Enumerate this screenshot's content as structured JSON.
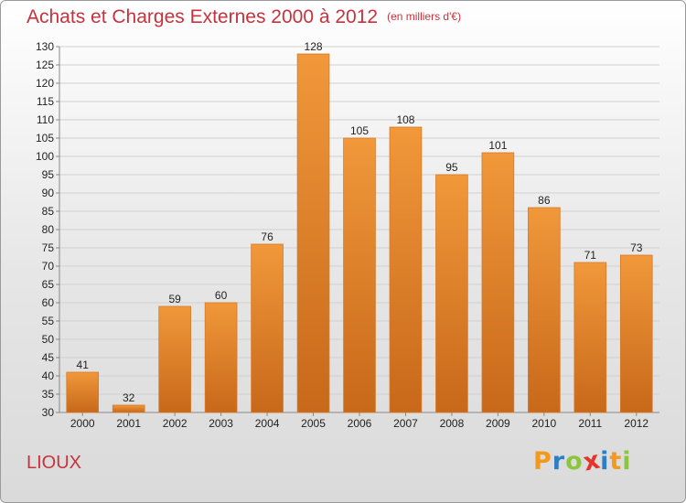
{
  "chart_data": {
    "type": "bar",
    "title": "Achats et Charges Externes 2000 à 2012",
    "subtitle": "(en milliers d'€)",
    "categories": [
      "2000",
      "2001",
      "2002",
      "2003",
      "2004",
      "2005",
      "2006",
      "2007",
      "2008",
      "2009",
      "2010",
      "2011",
      "2012"
    ],
    "values": [
      41,
      32,
      59,
      60,
      76,
      128,
      105,
      108,
      95,
      101,
      86,
      71,
      73
    ],
    "ylim": [
      30,
      130
    ],
    "ytick_step": 5,
    "grid": true,
    "bar_color": "#f0983a",
    "bar_color_dark": "#c8681a"
  },
  "commune": "LIOUX",
  "logo": {
    "text": "Proxiti",
    "letters": [
      "P",
      "r",
      "o",
      "x",
      "i",
      "t",
      "i"
    ],
    "colors": [
      "#f39a1e",
      "#2e7fc2",
      "#8cc63f",
      "#e5342c",
      "#2e7fc2",
      "#f39a1e",
      "#8cc63f"
    ]
  }
}
